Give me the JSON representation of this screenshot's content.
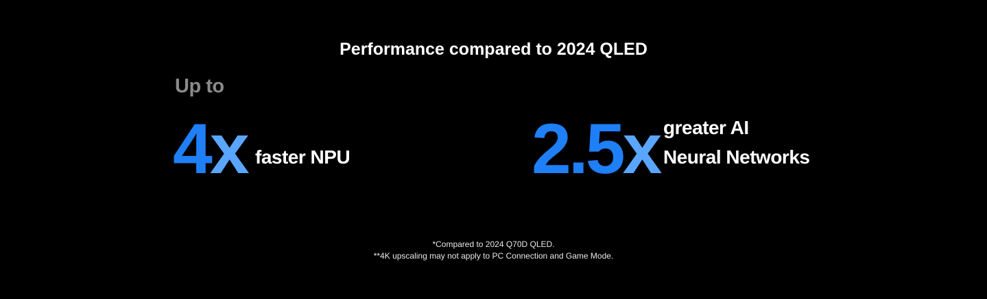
{
  "title": "Performance compared to 2024 QLED",
  "stats": [
    {
      "prefix": "Up to",
      "number": "4",
      "unit": "x",
      "description": [
        "faster NPU"
      ]
    },
    {
      "number": "2.5",
      "unit": "x",
      "description": [
        "greater AI",
        "Neural Networks"
      ]
    }
  ],
  "footnotes": [
    "*Compared to 2024 Q70D QLED.",
    "**4K upscaling may not apply to PC Connection and Game Mode."
  ]
}
